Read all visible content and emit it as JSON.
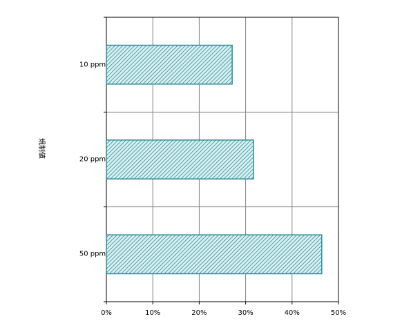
{
  "chart_data": {
    "type": "bar",
    "orientation": "horizontal",
    "y_label": "規制値",
    "categories": [
      "10 ppm",
      "20 ppm",
      "50 ppm"
    ],
    "values": [
      27.1,
      31.7,
      46.4
    ],
    "color": "#2e8b99",
    "xlim": [
      0,
      50
    ],
    "xticks": [
      {
        "value": 0,
        "label": "0%"
      },
      {
        "value": 10,
        "label": "10%"
      },
      {
        "value": 20,
        "label": "20%"
      },
      {
        "value": 30,
        "label": "30%"
      },
      {
        "value": 40,
        "label": "40%"
      },
      {
        "value": 50,
        "label": "50%"
      }
    ],
    "grid": true
  }
}
